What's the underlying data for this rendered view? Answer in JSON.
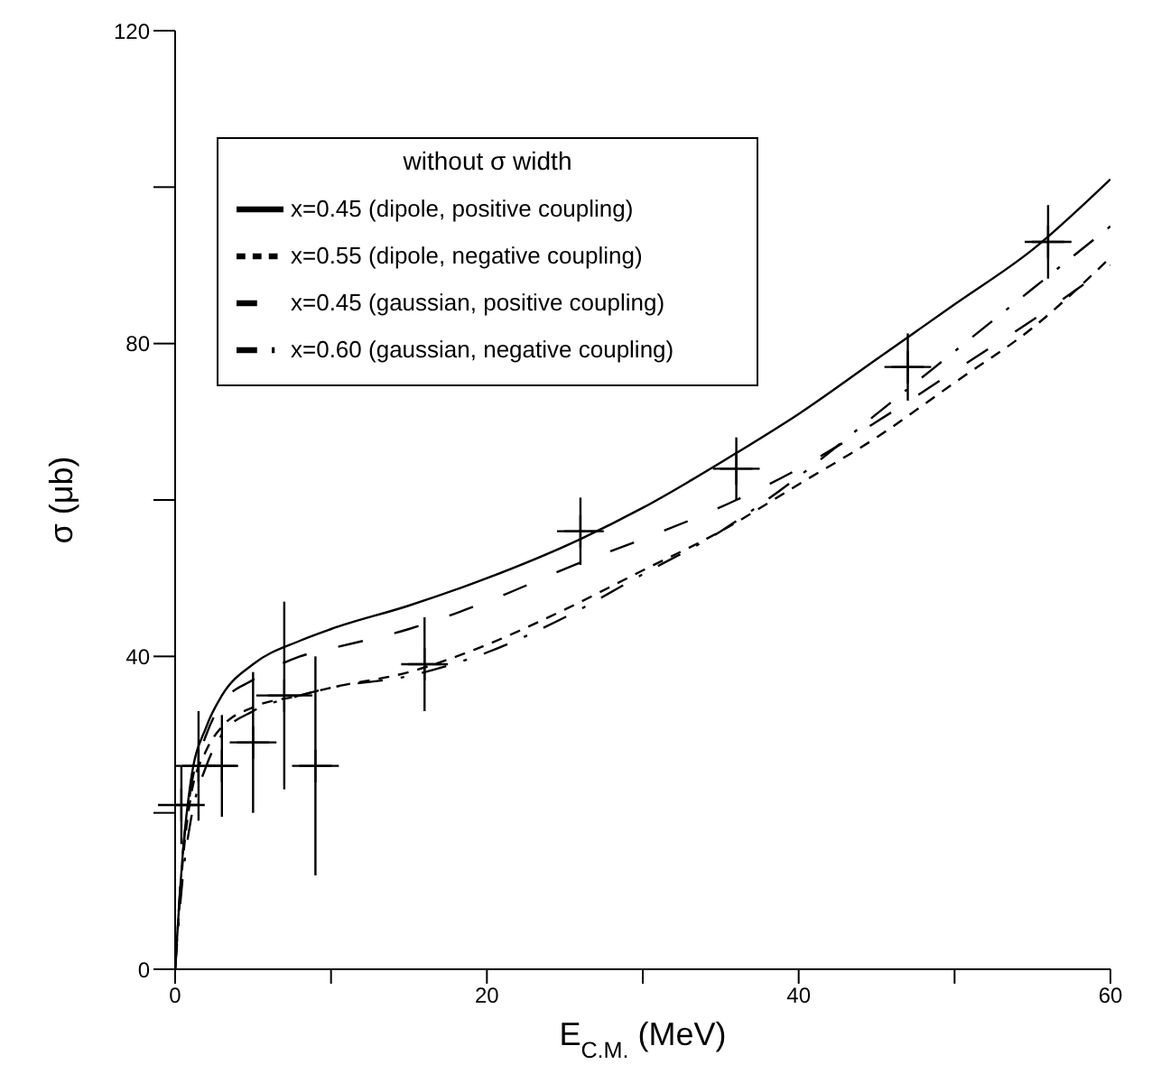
{
  "chart_data": {
    "type": "line",
    "xlabel": "E$_{C.M.}$ (MeV)",
    "ylabel": "σ (μb)",
    "legend_title": "without σ width",
    "xlim": [
      0,
      60
    ],
    "xticks": [
      0,
      {
        "value": 10,
        "label": null
      },
      20,
      {
        "value": 30,
        "label": null
      },
      40,
      {
        "value": 50,
        "label": null
      },
      60
    ],
    "ylim": [
      0,
      120
    ],
    "yticks": [
      0,
      {
        "value": 20,
        "label": null
      },
      40,
      {
        "value": 60,
        "label": null
      },
      80,
      {
        "value": 100,
        "label": null
      },
      120
    ],
    "grid": false,
    "legend": "top left",
    "series": [
      {
        "name": "x=0.45 (dipole, positive coupling)",
        "color": "#000000",
        "line_style": "solid",
        "x": [
          0,
          0.5,
          1,
          2,
          3,
          5,
          8,
          10,
          15,
          20,
          26,
          30,
          36,
          40,
          45,
          50,
          55,
          60
        ],
        "values": [
          0,
          15,
          24,
          31,
          35,
          39,
          42,
          43.5,
          46.5,
          50,
          55,
          59,
          66,
          71,
          78,
          85,
          92,
          101
        ]
      },
      {
        "name": "x=0.55 (dipole, negative coupling)",
        "color": "#000000",
        "line_style": "dashed",
        "x": [
          0,
          0.5,
          1,
          2,
          3,
          5,
          8,
          10,
          15,
          20,
          25,
          30,
          35,
          40,
          45,
          50,
          55,
          60
        ],
        "values": [
          0,
          14,
          22,
          28,
          31,
          33.5,
          35,
          36,
          38,
          41.5,
          46,
          51,
          56,
          62,
          68,
          75,
          82,
          91
        ]
      },
      {
        "name": "x=0.45 (gaussian, positive coupling)",
        "color": "#000000",
        "line_style": "dashed",
        "x": [
          0,
          0.5,
          1,
          2,
          3,
          5,
          8,
          10,
          15,
          20,
          26,
          30,
          36,
          40,
          45,
          50,
          55,
          60
        ],
        "values": [
          0,
          15,
          23,
          30,
          34,
          37,
          40,
          41,
          43.5,
          47,
          52,
          55,
          60,
          64,
          70,
          76.5,
          83,
          90
        ]
      },
      {
        "name": "x=0.60 (gaussian, negative coupling)",
        "color": "#000000",
        "line_style": "dashed",
        "x": [
          0,
          0.5,
          1,
          2,
          3,
          5,
          8,
          10,
          15,
          20,
          25,
          30,
          35,
          40,
          45,
          50,
          55,
          60
        ],
        "values": [
          0,
          12,
          19,
          26,
          30,
          33,
          35,
          36,
          37.5,
          40.5,
          45,
          50.5,
          56,
          63,
          71,
          79,
          87,
          95
        ]
      },
      {
        "type": "scatter",
        "color": "#000000",
        "marker": "cross",
        "x": [
          0.4,
          1.5,
          3,
          5,
          7,
          9,
          16,
          26,
          36,
          47,
          56
        ],
        "values": [
          21,
          26,
          26,
          29,
          35,
          26,
          39,
          56,
          64,
          77,
          93
        ],
        "errors": [
          5,
          7,
          6.5,
          9,
          12,
          14,
          6,
          4.3,
          4,
          4.3,
          4.7
        ],
        "xerrors": [
          1.5,
          1.5,
          1,
          1.5,
          1.8,
          1.5,
          1.5,
          1.5,
          1.5,
          1.5,
          1.5
        ]
      }
    ]
  }
}
